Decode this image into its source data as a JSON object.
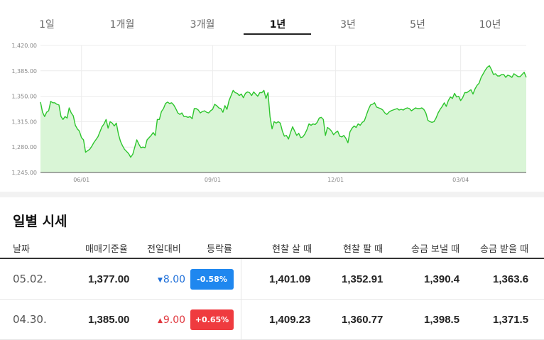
{
  "tabs": [
    {
      "label": "1일"
    },
    {
      "label": "1개월"
    },
    {
      "label": "3개월"
    },
    {
      "label": "1년",
      "active": true
    },
    {
      "label": "3년"
    },
    {
      "label": "5년"
    },
    {
      "label": "10년"
    }
  ],
  "chart_data": {
    "type": "area",
    "ylim": [
      1245,
      1420
    ],
    "yticks": [
      "1,420.00",
      "1,385.00",
      "1,350.00",
      "1,315.00",
      "1,280.00",
      "1,245.00"
    ],
    "ytick_values": [
      1420,
      1385,
      1350,
      1315,
      1280,
      1245
    ],
    "xticks": [
      "06/01",
      "09/01",
      "12/01",
      "03/04"
    ],
    "xtick_index": [
      20,
      84,
      144,
      205
    ],
    "line_color": "#2dc52d",
    "fill_color": "#d9f5d6",
    "values": [
      1342,
      1328,
      1322,
      1328,
      1330,
      1343,
      1341,
      1341,
      1339,
      1338,
      1322,
      1318,
      1322,
      1320,
      1334,
      1327,
      1323,
      1310,
      1305,
      1302,
      1293,
      1290,
      1273,
      1275,
      1277,
      1281,
      1286,
      1290,
      1294,
      1301,
      1308,
      1312,
      1318,
      1306,
      1315,
      1313,
      1309,
      1313,
      1298,
      1288,
      1282,
      1277,
      1274,
      1271,
      1266,
      1270,
      1280,
      1290,
      1284,
      1279,
      1280,
      1279,
      1290,
      1293,
      1296,
      1300,
      1296,
      1318,
      1318,
      1329,
      1333,
      1340,
      1342,
      1340,
      1341,
      1338,
      1333,
      1327,
      1325,
      1327,
      1322,
      1322,
      1321,
      1322,
      1319,
      1333,
      1333,
      1331,
      1327,
      1329,
      1330,
      1328,
      1327,
      1330,
      1332,
      1339,
      1337,
      1334,
      1333,
      1328,
      1337,
      1332,
      1344,
      1351,
      1358,
      1355,
      1354,
      1351,
      1353,
      1348,
      1354,
      1356,
      1355,
      1351,
      1356,
      1353,
      1350,
      1355,
      1355,
      1358,
      1347,
      1355,
      1322,
      1305,
      1315,
      1313,
      1315,
      1313,
      1302,
      1295,
      1296,
      1291,
      1300,
      1308,
      1302,
      1296,
      1299,
      1293,
      1294,
      1298,
      1304,
      1312,
      1310,
      1312,
      1311,
      1314,
      1320,
      1321,
      1318,
      1296,
      1307,
      1305,
      1302,
      1297,
      1300,
      1302,
      1295,
      1294,
      1296,
      1292,
      1286,
      1301,
      1306,
      1309,
      1307,
      1312,
      1310,
      1314,
      1316,
      1324,
      1332,
      1338,
      1339,
      1341,
      1335,
      1334,
      1333,
      1331,
      1327,
      1325,
      1328,
      1330,
      1331,
      1332,
      1333,
      1331,
      1332,
      1331,
      1333,
      1334,
      1333,
      1330,
      1332,
      1334,
      1333,
      1333,
      1334,
      1332,
      1327,
      1317,
      1315,
      1314,
      1315,
      1320,
      1327,
      1332,
      1336,
      1341,
      1336,
      1344,
      1349,
      1347,
      1354,
      1349,
      1350,
      1344,
      1348,
      1355,
      1355,
      1357,
      1359,
      1353,
      1360,
      1365,
      1368,
      1376,
      1381,
      1386,
      1390,
      1392,
      1387,
      1380,
      1381,
      1378,
      1378,
      1380,
      1380,
      1376,
      1379,
      1378,
      1376,
      1381,
      1379,
      1377,
      1377,
      1380,
      1383,
      1376
    ]
  },
  "section": {
    "title": "일별 시세"
  },
  "table": {
    "headers": {
      "date": "날짜",
      "base_rate": "매매기준율",
      "change": "전일대비",
      "change_rate": "등락률",
      "cash_buy": "현찰 살 때",
      "cash_sell": "현찰 팔 때",
      "remit_send": "송금 보낼 때",
      "remit_receive": "송금 받을 때"
    },
    "rows": [
      {
        "date": "05.02.",
        "base_rate": "1,377.00",
        "change_arrow": "▼",
        "change": "8.00",
        "direction": "down",
        "change_rate": "-0.58%",
        "cash_buy": "1,401.09",
        "cash_sell": "1,352.91",
        "remit_send": "1,390.4",
        "remit_receive": "1,363.6"
      },
      {
        "date": "04.30.",
        "base_rate": "1,385.00",
        "change_arrow": "▲",
        "change": "9.00",
        "direction": "up",
        "change_rate": "+0.65%",
        "cash_buy": "1,409.23",
        "cash_sell": "1,360.77",
        "remit_send": "1,398.5",
        "remit_receive": "1,371.5"
      }
    ]
  },
  "colors": {
    "down": "#1f87ef",
    "up": "#ef3b3f",
    "accent_line": "#2dc52d"
  }
}
